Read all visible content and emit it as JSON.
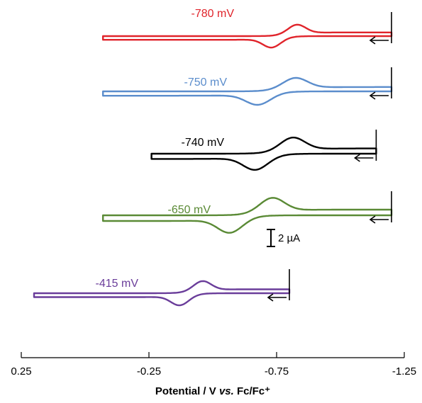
{
  "chart_data": {
    "type": "line",
    "title": "",
    "xlabel_parts": [
      "Potential / V ",
      "vs.",
      " Fc/Fc⁺"
    ],
    "xlabel": "Potential / V vs. Fc/Fc⁺",
    "ylabel": "",
    "xlim": [
      0.25,
      -1.25
    ],
    "x_reversed": true,
    "x_ticks": [
      0.25,
      -0.25,
      -0.75,
      -1.25
    ],
    "x_tick_labels": [
      "0.25",
      "-0.25",
      "-0.75",
      "-1.25"
    ],
    "scale_bar": {
      "value": 2,
      "unit": "µA",
      "label": "2 µA"
    },
    "series": [
      {
        "name": "-780 mV",
        "color": "#e0242b",
        "e_half": -0.78,
        "start": -1.2,
        "switch": -0.07,
        "width": 0.036,
        "peak_sep": 0.08,
        "ip": 0.85,
        "arrow_label": "scan-direction-arrow-1"
      },
      {
        "name": "-750 mV",
        "color": "#5b8dcc",
        "e_half": -0.75,
        "start": -1.2,
        "switch": -0.07,
        "width": 0.05,
        "peak_sep": 0.12,
        "ip": 1.0,
        "arrow_label": "scan-direction-arrow-2"
      },
      {
        "name": "-740 mV",
        "color": "#000000",
        "e_half": -0.74,
        "start": -1.14,
        "switch": -0.26,
        "width": 0.05,
        "peak_sep": 0.12,
        "ip": 1.2,
        "arrow_label": "scan-direction-arrow-3"
      },
      {
        "name": "-650 mV",
        "color": "#5a8a35",
        "e_half": -0.65,
        "start": -1.2,
        "switch": -0.07,
        "width": 0.05,
        "peak_sep": 0.14,
        "ip": 1.3,
        "arrow_label": "scan-direction-arrow-4"
      },
      {
        "name": "-415 mV",
        "color": "#6a3d9a",
        "e_half": -0.415,
        "start": -0.8,
        "switch": 0.2,
        "width": 0.036,
        "peak_sep": 0.07,
        "ip": 0.9,
        "arrow_label": "scan-direction-arrow-5"
      }
    ]
  }
}
